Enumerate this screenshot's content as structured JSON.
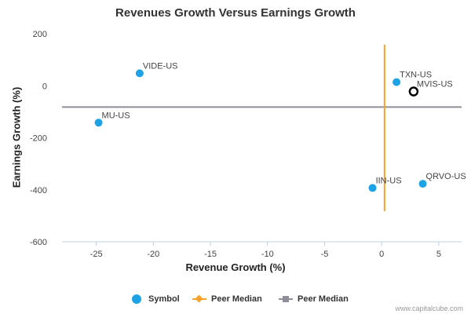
{
  "chart_data": {
    "type": "scatter",
    "title": "Revenues Growth Versus Earnings Growth",
    "xlabel": "Revenue Growth (%)",
    "ylabel": "Earnings Growth (%)",
    "xlim": [
      -28,
      7
    ],
    "ylim": [
      -600,
      200
    ],
    "xticks": [
      -25,
      -20,
      -15,
      -10,
      -5,
      0,
      5
    ],
    "yticks": [
      200,
      0,
      -200,
      -400,
      -600
    ],
    "grid": false,
    "legend_placement": "bottom",
    "series": [
      {
        "name": "Symbol",
        "color": "#1ea2e6",
        "points": [
          {
            "label": "VIDE-US",
            "x": -21.2,
            "y": 48
          },
          {
            "label": "MU-US",
            "x": -24.8,
            "y": -142
          },
          {
            "label": "TXN-US",
            "x": 1.3,
            "y": 14
          },
          {
            "label": "MVIS-US",
            "x": 2.8,
            "y": -22,
            "highlight": true
          },
          {
            "label": "QRVO-US",
            "x": 3.6,
            "y": -377
          },
          {
            "label": "IIN-US",
            "x": -0.8,
            "y": -393
          }
        ]
      },
      {
        "name": "Peer Median",
        "color": "#f7a128",
        "orientation": "vertical",
        "x": 0.25
      },
      {
        "name": "Peer Median",
        "color": "#8f8f9a",
        "orientation": "horizontal",
        "y": -82
      }
    ]
  },
  "legend": {
    "items": [
      {
        "label": "Symbol"
      },
      {
        "label": "Peer Median"
      },
      {
        "label": "Peer Median"
      }
    ]
  },
  "credit": "www.capitalcube.com"
}
